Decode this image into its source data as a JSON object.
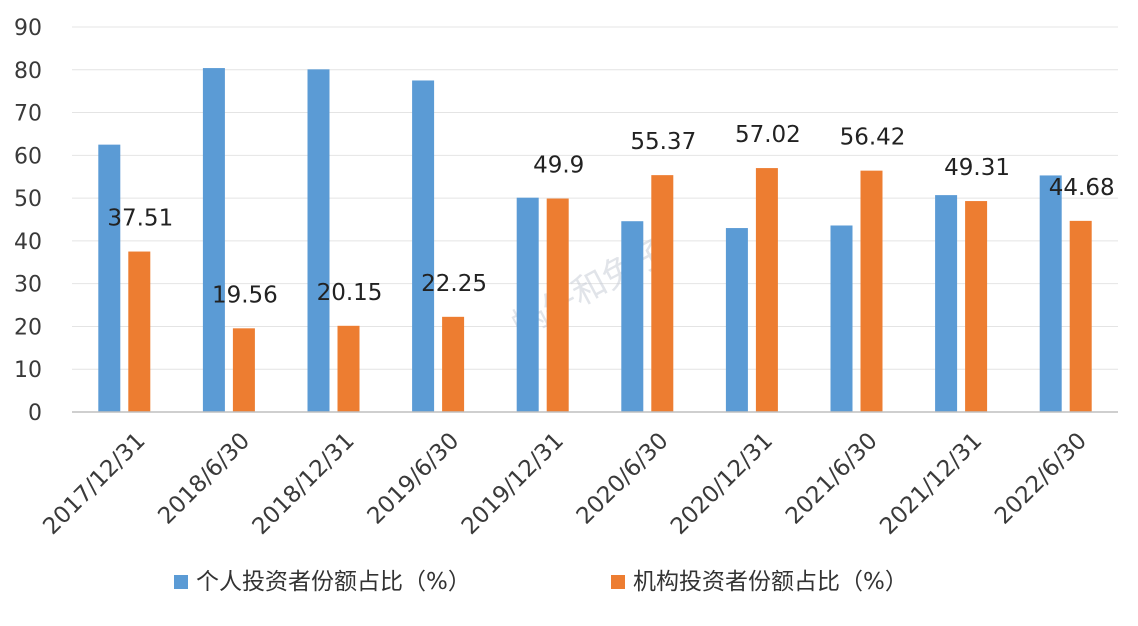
{
  "chart_data": {
    "type": "bar",
    "categories": [
      "2017/12/31",
      "2018/6/30",
      "2018/12/31",
      "2019/6/30",
      "2019/12/31",
      "2020/6/30",
      "2020/12/31",
      "2021/6/30",
      "2021/12/31",
      "2022/6/30"
    ],
    "series": [
      {
        "name": "个人投资者份额占比（%）",
        "color": "#5B9BD5",
        "values": [
          62.5,
          80.4,
          80.1,
          77.5,
          50.1,
          44.6,
          43.0,
          43.6,
          50.7,
          55.3
        ],
        "data_labels": [
          "",
          "",
          "",
          "",
          "",
          "",
          "",
          "",
          "",
          ""
        ]
      },
      {
        "name": "机构投资者份额占比（%）",
        "color": "#ED7D31",
        "values": [
          37.51,
          19.56,
          20.15,
          22.25,
          49.9,
          55.37,
          57.02,
          56.42,
          49.31,
          44.68
        ],
        "data_labels": [
          "37.51",
          "19.56",
          "20.15",
          "22.25",
          "49.9",
          "55.37",
          "57.02",
          "56.42",
          "49.31",
          "44.68"
        ]
      }
    ],
    "ylim": [
      0,
      90
    ],
    "yticks": [
      "0",
      "10",
      "20",
      "30",
      "40",
      "50",
      "60",
      "70",
      "80",
      "90"
    ],
    "title": "",
    "xlabel": "",
    "ylabel": "",
    "grid": true,
    "legend": "bottom",
    "watermark": "蜗牛和兔子"
  }
}
